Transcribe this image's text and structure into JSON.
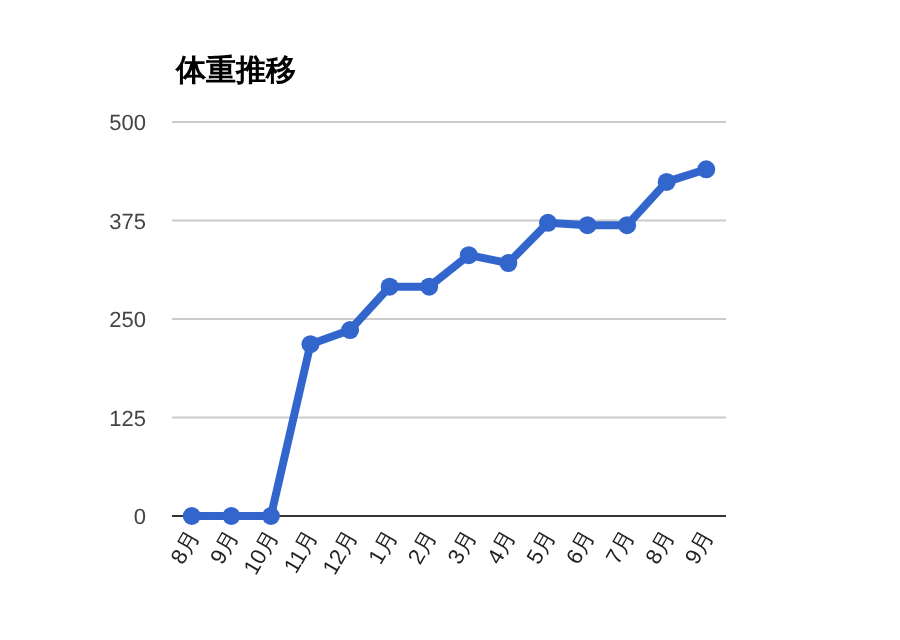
{
  "chart_data": {
    "type": "line",
    "title": "体重推移",
    "categories": [
      "8月",
      "9月",
      "10月",
      "11月",
      "12月",
      "1月",
      "2月",
      "3月",
      "4月",
      "5月",
      "6月",
      "7月",
      "8月",
      "9月"
    ],
    "values": [
      0,
      0,
      0,
      218,
      236,
      291,
      291,
      331,
      321,
      372,
      369,
      369,
      424,
      440
    ],
    "color": "#3366cc",
    "ylim": [
      0,
      500
    ],
    "yticks": [
      0,
      125,
      250,
      375,
      500
    ],
    "grid": "y",
    "marker": "circle",
    "line_style": "solid"
  }
}
